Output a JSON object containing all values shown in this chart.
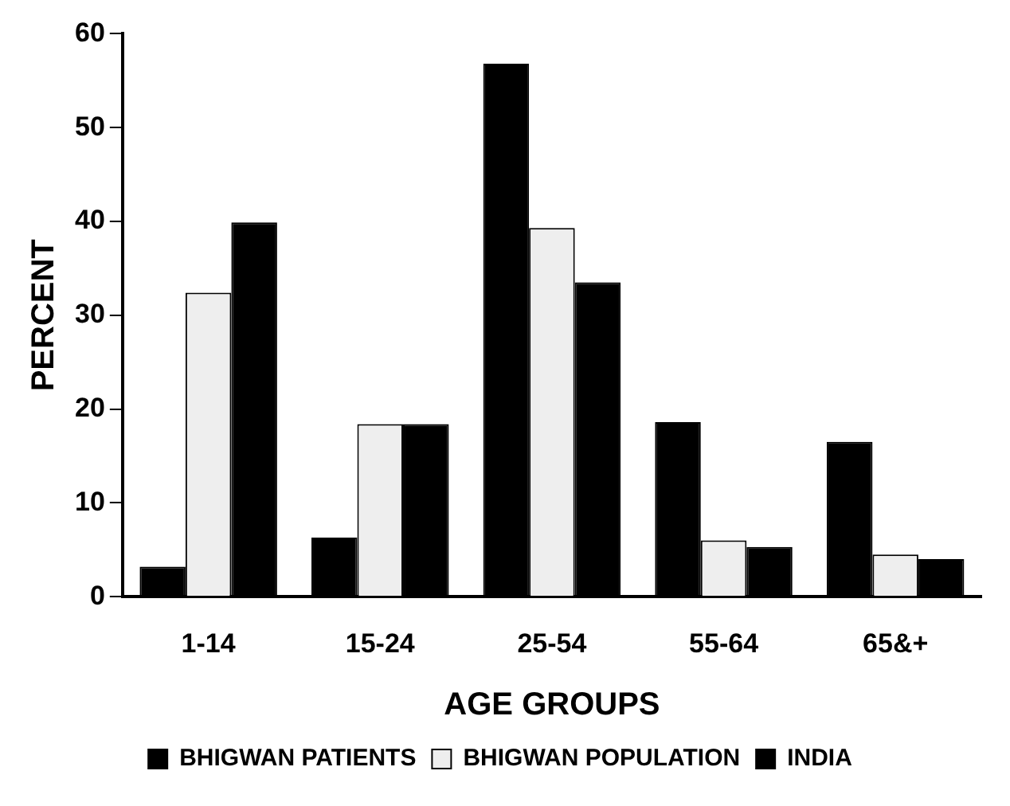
{
  "chart_data": {
    "type": "bar",
    "xlabel": "AGE GROUPS",
    "ylabel": "PERCENT",
    "categories": [
      "1-14",
      "15-24",
      "25-54",
      "55-64",
      "65&+"
    ],
    "series": [
      {
        "name": "BHIGWAN PATIENTS",
        "color": "#000000",
        "values": [
          3.2,
          6.3,
          56.8,
          18.6,
          16.5
        ]
      },
      {
        "name": "BHIGWAN POPULATION",
        "color": "#eeeeee",
        "values": [
          32.4,
          18.4,
          39.3,
          6.0,
          4.5
        ]
      },
      {
        "name": "INDIA",
        "color": "#000000",
        "values": [
          39.9,
          18.4,
          33.5,
          5.3,
          4.0
        ]
      }
    ],
    "ylim": [
      0,
      60
    ],
    "yticks": [
      0,
      10,
      20,
      30,
      40,
      50,
      60
    ],
    "grid": false,
    "legend": "bottom"
  }
}
